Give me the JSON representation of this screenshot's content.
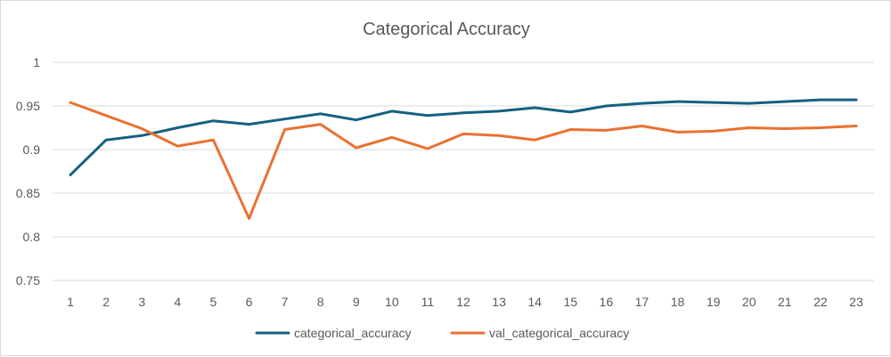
{
  "chart_data": {
    "type": "line",
    "title": "Categorical Accuracy",
    "xlabel": "",
    "ylabel": "",
    "x": [
      1,
      2,
      3,
      4,
      5,
      6,
      7,
      8,
      9,
      10,
      11,
      12,
      13,
      14,
      15,
      16,
      17,
      18,
      19,
      20,
      21,
      22,
      23
    ],
    "y_ticks": [
      "0.75",
      "0.8",
      "0.85",
      "0.9",
      "0.95",
      "1"
    ],
    "ylim": [
      0.75,
      1.0
    ],
    "grid": true,
    "legend_position": "bottom",
    "series": [
      {
        "name": "categorical_accuracy",
        "color": "#156082",
        "values": [
          0.871,
          0.911,
          0.916,
          0.925,
          0.933,
          0.929,
          0.935,
          0.941,
          0.934,
          0.944,
          0.939,
          0.942,
          0.944,
          0.948,
          0.943,
          0.95,
          0.953,
          0.955,
          0.954,
          0.953,
          0.955,
          0.957,
          0.957
        ]
      },
      {
        "name": "val_categorical_accuracy",
        "color": "#E97132",
        "values": [
          0.954,
          0.939,
          0.924,
          0.904,
          0.911,
          0.821,
          0.923,
          0.929,
          0.902,
          0.914,
          0.901,
          0.918,
          0.916,
          0.911,
          0.923,
          0.922,
          0.927,
          0.92,
          0.921,
          0.925,
          0.924,
          0.925,
          0.927
        ]
      }
    ]
  }
}
